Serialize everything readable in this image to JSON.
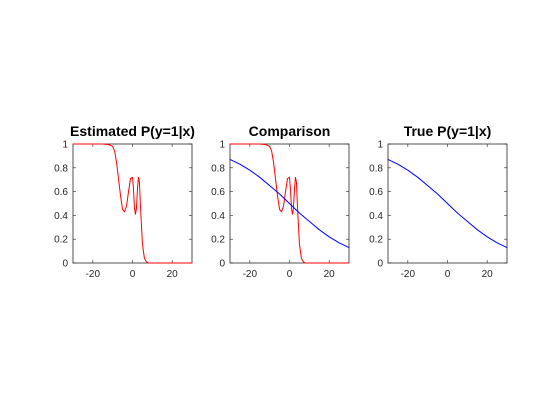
{
  "figure": {
    "background": "#ffffff",
    "axis_color": "#262626"
  },
  "chart_data": [
    {
      "type": "line",
      "title": "Estimated P(y=1|x)",
      "xlabel": "",
      "ylabel": "",
      "xlim": [
        -30,
        30
      ],
      "ylim": [
        0,
        1
      ],
      "xticks": [
        -20,
        0,
        20
      ],
      "xtick_labels": [
        "-20",
        "0",
        "20"
      ],
      "yticks": [
        0,
        0.2,
        0.4,
        0.6,
        0.8,
        1
      ],
      "ytick_labels": [
        "0",
        "0.2",
        "0.4",
        "0.6",
        "0.8",
        "1"
      ],
      "grid": false,
      "legend": "none",
      "series": [
        {
          "color": "#ff0000",
          "x": [
            -30,
            -22,
            -15,
            -12,
            -10,
            -9,
            -8,
            -7,
            -6,
            -5,
            -4,
            -3,
            -2,
            -1,
            0,
            0.5,
            1,
            1.5,
            2,
            2.5,
            3,
            3.5,
            4,
            5,
            6,
            7,
            8,
            9,
            10,
            15,
            20,
            25,
            30
          ],
          "y": [
            1.0,
            1.0,
            1.0,
            0.995,
            0.98,
            0.94,
            0.84,
            0.7,
            0.56,
            0.45,
            0.43,
            0.48,
            0.6,
            0.71,
            0.72,
            0.62,
            0.46,
            0.41,
            0.46,
            0.62,
            0.72,
            0.68,
            0.48,
            0.16,
            0.04,
            0.01,
            0.0,
            0.0,
            0.0,
            0.0,
            0.0,
            0.0,
            0.0
          ]
        }
      ]
    },
    {
      "type": "line",
      "title": "Comparison",
      "xlabel": "",
      "ylabel": "",
      "xlim": [
        -30,
        30
      ],
      "ylim": [
        0,
        1
      ],
      "xticks": [
        -20,
        0,
        20
      ],
      "xtick_labels": [
        "-20",
        "0",
        "20"
      ],
      "yticks": [
        0,
        0.2,
        0.4,
        0.6,
        0.8,
        1
      ],
      "ytick_labels": [
        "0",
        "0.2",
        "0.4",
        "0.6",
        "0.8",
        "1"
      ],
      "grid": false,
      "legend": "none",
      "series": [
        {
          "color": "#ff0000",
          "x": [
            -30,
            -22,
            -15,
            -12,
            -10,
            -9,
            -8,
            -7,
            -6,
            -5,
            -4,
            -3,
            -2,
            -1,
            0,
            0.5,
            1,
            1.5,
            2,
            2.5,
            3,
            3.5,
            4,
            5,
            6,
            7,
            8,
            9,
            10,
            15,
            20,
            25,
            30
          ],
          "y": [
            1.0,
            1.0,
            1.0,
            0.995,
            0.98,
            0.94,
            0.84,
            0.7,
            0.56,
            0.45,
            0.43,
            0.48,
            0.6,
            0.71,
            0.72,
            0.62,
            0.46,
            0.41,
            0.46,
            0.62,
            0.72,
            0.68,
            0.48,
            0.16,
            0.04,
            0.01,
            0.0,
            0.0,
            0.0,
            0.0,
            0.0,
            0.0,
            0.0
          ]
        },
        {
          "color": "#0000ff",
          "x": [
            -30,
            -25,
            -20,
            -15,
            -10,
            -5,
            0,
            5,
            10,
            15,
            20,
            25,
            30
          ],
          "y": [
            0.87,
            0.83,
            0.78,
            0.72,
            0.65,
            0.58,
            0.5,
            0.42,
            0.35,
            0.28,
            0.22,
            0.17,
            0.13
          ]
        }
      ]
    },
    {
      "type": "line",
      "title": "True P(y=1|x)",
      "xlabel": "",
      "ylabel": "",
      "xlim": [
        -30,
        30
      ],
      "ylim": [
        0,
        1
      ],
      "xticks": [
        -20,
        0,
        20
      ],
      "xtick_labels": [
        "-20",
        "0",
        "20"
      ],
      "yticks": [
        0,
        0.2,
        0.4,
        0.6,
        0.8,
        1
      ],
      "ytick_labels": [
        "0",
        "0.2",
        "0.4",
        "0.6",
        "0.8",
        "1"
      ],
      "grid": false,
      "legend": "none",
      "series": [
        {
          "color": "#0000ff",
          "x": [
            -30,
            -25,
            -20,
            -15,
            -10,
            -5,
            0,
            5,
            10,
            15,
            20,
            25,
            30
          ],
          "y": [
            0.87,
            0.83,
            0.78,
            0.72,
            0.65,
            0.58,
            0.5,
            0.42,
            0.35,
            0.28,
            0.22,
            0.17,
            0.13
          ]
        }
      ]
    }
  ]
}
